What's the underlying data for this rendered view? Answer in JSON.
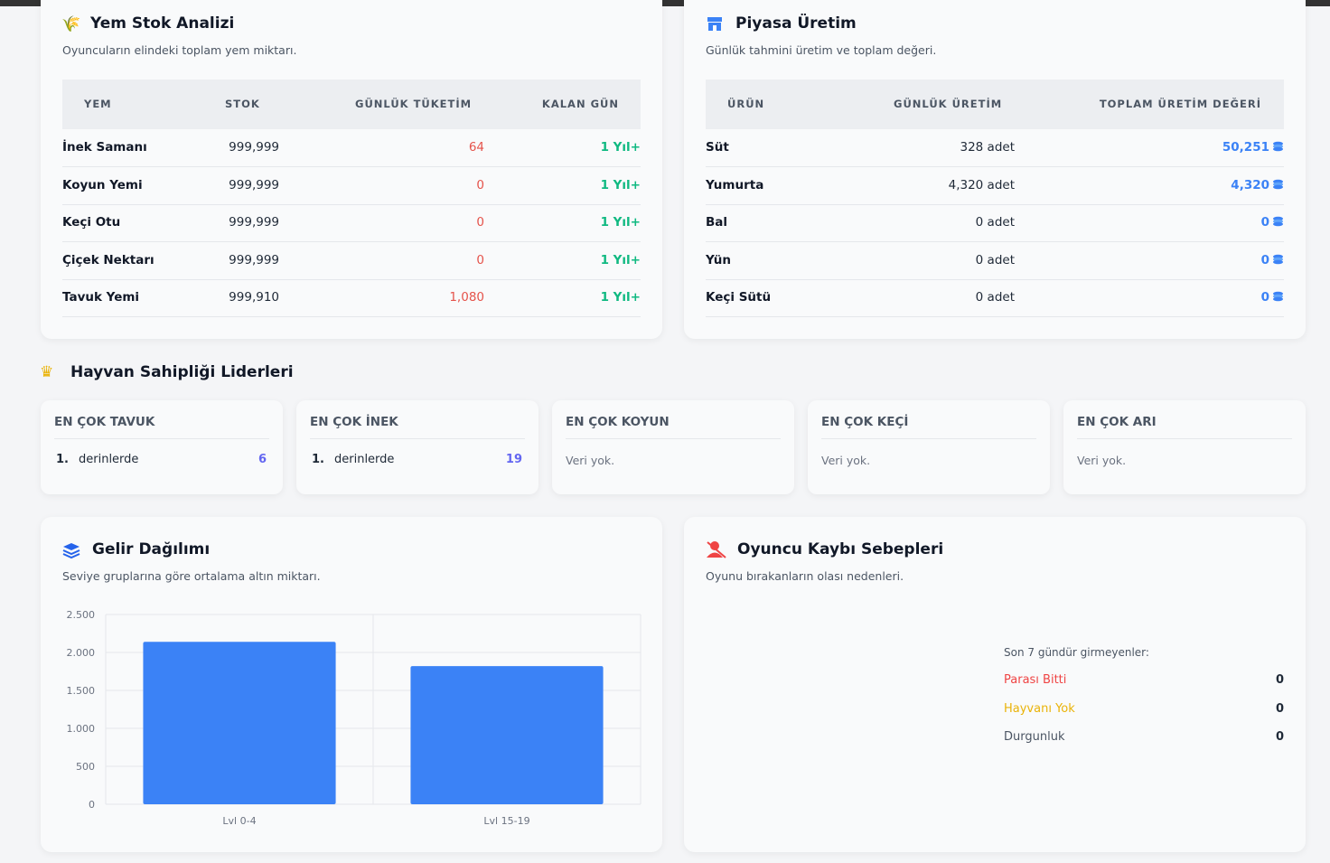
{
  "feed_stock": {
    "title": "Yem Stok Analizi",
    "subtitle": "Oyuncuların elindeki toplam yem miktarı.",
    "headers": [
      "YEM",
      "STOK",
      "GÜNLÜK TÜKETİM",
      "KALAN GÜN"
    ],
    "rows": [
      [
        "İnek Samanı",
        "999,999",
        "64",
        "1 Yıl+"
      ],
      [
        "Koyun Yemi",
        "999,999",
        "0",
        "1 Yıl+"
      ],
      [
        "Keçi Otu",
        "999,999",
        "0",
        "1 Yıl+"
      ],
      [
        "Çiçek Nektarı",
        "999,999",
        "0",
        "1 Yıl+"
      ],
      [
        "Tavuk Yemi",
        "999,910",
        "1,080",
        "1 Yıl+"
      ]
    ]
  },
  "market": {
    "title": "Piyasa Üretim",
    "subtitle": "Günlük tahmini üretim ve toplam değeri.",
    "headers": [
      "ÜRÜN",
      "GÜNLÜK ÜRETİM",
      "TOPLAM ÜRETİM DEĞERİ"
    ],
    "rows": [
      [
        "Süt",
        "328 adet",
        "50,251"
      ],
      [
        "Yumurta",
        "4,320 adet",
        "4,320"
      ],
      [
        "Bal",
        "0 adet",
        "0"
      ],
      [
        "Yün",
        "0 adet",
        "0"
      ],
      [
        "Keçi Sütü",
        "0 adet",
        "0"
      ]
    ]
  },
  "leaders": {
    "title": "Hayvan Sahipliği Liderleri",
    "cards": [
      {
        "title": "EN ÇOK TAVUK",
        "entries": [
          {
            "rank": "1.",
            "name": "derinlerde",
            "value": "6"
          }
        ]
      },
      {
        "title": "EN ÇOK İNEK",
        "entries": [
          {
            "rank": "1.",
            "name": "derinlerde",
            "value": "19"
          }
        ]
      },
      {
        "title": "EN ÇOK KOYUN",
        "empty": "Veri yok."
      },
      {
        "title": "EN ÇOK KEÇİ",
        "empty": "Veri yok."
      },
      {
        "title": "EN ÇOK ARI",
        "empty": "Veri yok."
      }
    ]
  },
  "chart_data": {
    "type": "bar",
    "title": "Gelir Dağılımı",
    "subtitle": "Seviye gruplarına göre ortalama altın miktarı.",
    "categories": [
      "Lvl 0-4",
      "Lvl 15-19"
    ],
    "values": [
      2140,
      1820
    ],
    "color": "#3b82f6",
    "ylim": [
      0,
      2500
    ],
    "yticks": [
      0,
      500,
      {
        "value": 1000,
        "label": "1.000"
      },
      {
        "value": 1500,
        "label": "1.500"
      },
      {
        "value": 2000,
        "label": "2.000"
      },
      {
        "value": 2500,
        "label": "2.500"
      }
    ],
    "grid": true
  },
  "churn": {
    "title": "Oyuncu Kaybı Sebepleri",
    "subtitle": "Oyunu bırakanların olası nedenleri.",
    "label": "Son 7 gündür girmeyenler:",
    "items": [
      {
        "name": "Parası Bitti",
        "value": 0,
        "color": "#ef4444"
      },
      {
        "name": "Hayvanı Yok",
        "value": 0,
        "color": "#eab308"
      },
      {
        "name": "Durgunluk",
        "value": 0,
        "color": "#4b5563"
      }
    ]
  }
}
